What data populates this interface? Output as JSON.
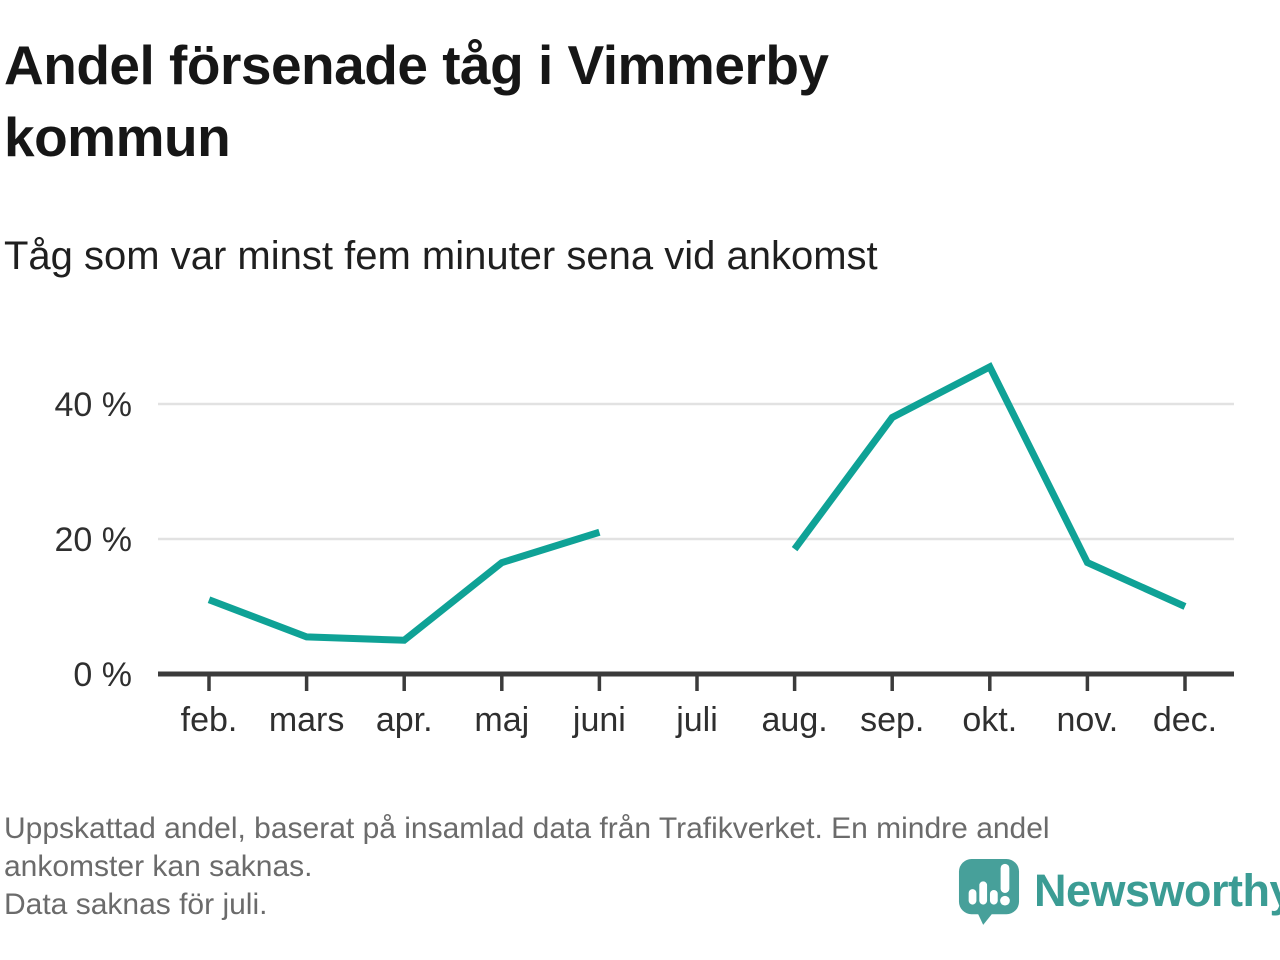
{
  "chart_data": {
    "type": "line",
    "title": "Andel försenade tåg i Vimmerby kommun",
    "subtitle": "Tåg som var minst fem minuter sena vid ankomst",
    "categories": [
      "feb.",
      "mars",
      "apr.",
      "maj",
      "juni",
      "juli",
      "aug.",
      "sep.",
      "okt.",
      "nov.",
      "dec."
    ],
    "values": [
      11,
      5.5,
      5,
      16.5,
      21,
      null,
      18.5,
      38,
      45.5,
      16.5,
      10
    ],
    "unit": "%",
    "xlabel": "",
    "ylabel": "",
    "y_ticks": [
      0,
      20,
      40
    ],
    "y_tick_labels": [
      "0 %",
      "20 %",
      "40 %"
    ],
    "ylim": [
      0,
      48
    ],
    "grid": true,
    "legend": "none",
    "line_color": "#0fa296",
    "missing_data_categories": [
      "juli"
    ]
  },
  "footer": {
    "lines": [
      "Uppskattad andel, baserat på insamlad data från Trafikverket. En mindre andel",
      "ankomster kan saknas.",
      "Data saknas för juli."
    ]
  },
  "logo": {
    "text": "Newsworthy",
    "icon": "newsworthy-speech-bubble-bar-chart-icon"
  },
  "colors": {
    "line": "#0fa296",
    "axis": "#3b3b3b",
    "grid": "#e2e2e2",
    "title_text": "#161616",
    "footnote_text": "#6b6b6b",
    "logo_bubble": "#47a09a",
    "logo_text": "#3b9c94"
  }
}
